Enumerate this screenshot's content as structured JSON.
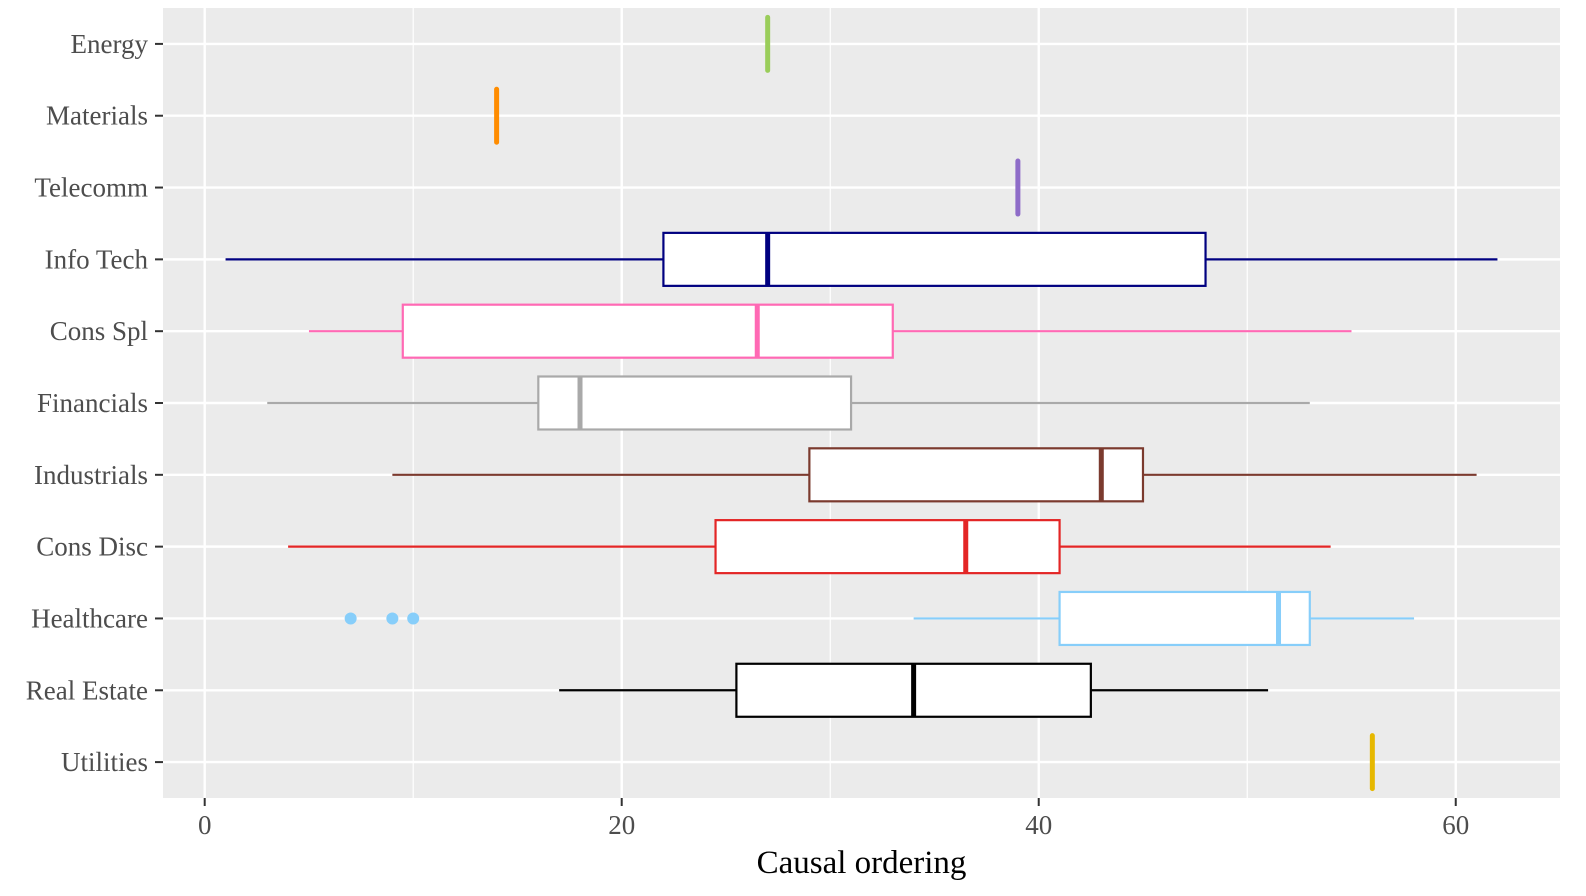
{
  "chart_data": {
    "type": "boxplot",
    "orientation": "horizontal",
    "title": "",
    "xlabel": "Causal ordering",
    "ylabel": "",
    "xlim": [
      -2,
      65
    ],
    "x_ticks": [
      0,
      20,
      40,
      60
    ],
    "x_minor_ticks": [
      10,
      30,
      50
    ],
    "grid": true,
    "legend": "none",
    "series": [
      {
        "name": "Energy",
        "color": "#9ACD5A",
        "min": 27,
        "q1": 27,
        "median": 27,
        "q3": 27,
        "max": 27,
        "outliers": []
      },
      {
        "name": "Materials",
        "color": "#FF8C00",
        "min": 14,
        "q1": 14,
        "median": 14,
        "q3": 14,
        "max": 14,
        "outliers": []
      },
      {
        "name": "Telecomm",
        "color": "#8E6CC8",
        "min": 39,
        "q1": 39,
        "median": 39,
        "q3": 39,
        "max": 39,
        "outliers": []
      },
      {
        "name": "Info Tech",
        "color": "#000080",
        "min": 1,
        "q1": 22,
        "median": 27,
        "q3": 48,
        "max": 62,
        "outliers": []
      },
      {
        "name": "Cons Spl",
        "color": "#FF69B4",
        "min": 5,
        "q1": 9.5,
        "median": 26.5,
        "q3": 33,
        "max": 55,
        "outliers": []
      },
      {
        "name": "Financials",
        "color": "#A9A9A9",
        "min": 3,
        "q1": 16,
        "median": 18,
        "q3": 31,
        "max": 53,
        "outliers": []
      },
      {
        "name": "Industrials",
        "color": "#7B3A2E",
        "min": 9,
        "q1": 29,
        "median": 43,
        "q3": 45,
        "max": 61,
        "outliers": []
      },
      {
        "name": "Cons Disc",
        "color": "#E32626",
        "min": 4,
        "q1": 24.5,
        "median": 36.5,
        "q3": 41,
        "max": 54,
        "outliers": []
      },
      {
        "name": "Healthcare",
        "color": "#87CEFA",
        "min": 34,
        "q1": 41,
        "median": 51.5,
        "q3": 53,
        "max": 58,
        "outliers": [
          7,
          9,
          10
        ]
      },
      {
        "name": "Real Estate",
        "color": "#000000",
        "min": 17,
        "q1": 25.5,
        "median": 34,
        "q3": 42.5,
        "max": 51,
        "outliers": []
      },
      {
        "name": "Utilities",
        "color": "#E6B800",
        "min": 56,
        "q1": 56,
        "median": 56,
        "q3": 56,
        "max": 56,
        "outliers": []
      }
    ]
  }
}
